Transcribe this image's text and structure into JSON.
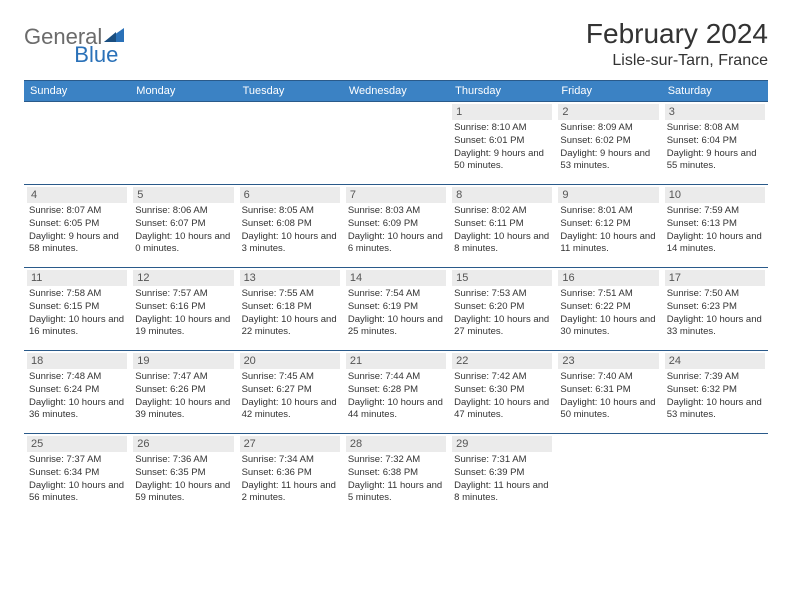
{
  "logo": {
    "text1": "General",
    "text2": "Blue",
    "icon_color": "#2a71b8"
  },
  "title": "February 2024",
  "location": "Lisle-sur-Tarn, France",
  "colors": {
    "header_bg": "#3b82c4",
    "header_border": "#2a5a8a",
    "daynum_bg": "#ebebeb",
    "text": "#333333"
  },
  "weekdays": [
    "Sunday",
    "Monday",
    "Tuesday",
    "Wednesday",
    "Thursday",
    "Friday",
    "Saturday"
  ],
  "weeks": [
    [
      null,
      null,
      null,
      null,
      {
        "n": "1",
        "sr": "8:10 AM",
        "ss": "6:01 PM",
        "dl": "9 hours and 50 minutes."
      },
      {
        "n": "2",
        "sr": "8:09 AM",
        "ss": "6:02 PM",
        "dl": "9 hours and 53 minutes."
      },
      {
        "n": "3",
        "sr": "8:08 AM",
        "ss": "6:04 PM",
        "dl": "9 hours and 55 minutes."
      }
    ],
    [
      {
        "n": "4",
        "sr": "8:07 AM",
        "ss": "6:05 PM",
        "dl": "9 hours and 58 minutes."
      },
      {
        "n": "5",
        "sr": "8:06 AM",
        "ss": "6:07 PM",
        "dl": "10 hours and 0 minutes."
      },
      {
        "n": "6",
        "sr": "8:05 AM",
        "ss": "6:08 PM",
        "dl": "10 hours and 3 minutes."
      },
      {
        "n": "7",
        "sr": "8:03 AM",
        "ss": "6:09 PM",
        "dl": "10 hours and 6 minutes."
      },
      {
        "n": "8",
        "sr": "8:02 AM",
        "ss": "6:11 PM",
        "dl": "10 hours and 8 minutes."
      },
      {
        "n": "9",
        "sr": "8:01 AM",
        "ss": "6:12 PM",
        "dl": "10 hours and 11 minutes."
      },
      {
        "n": "10",
        "sr": "7:59 AM",
        "ss": "6:13 PM",
        "dl": "10 hours and 14 minutes."
      }
    ],
    [
      {
        "n": "11",
        "sr": "7:58 AM",
        "ss": "6:15 PM",
        "dl": "10 hours and 16 minutes."
      },
      {
        "n": "12",
        "sr": "7:57 AM",
        "ss": "6:16 PM",
        "dl": "10 hours and 19 minutes."
      },
      {
        "n": "13",
        "sr": "7:55 AM",
        "ss": "6:18 PM",
        "dl": "10 hours and 22 minutes."
      },
      {
        "n": "14",
        "sr": "7:54 AM",
        "ss": "6:19 PM",
        "dl": "10 hours and 25 minutes."
      },
      {
        "n": "15",
        "sr": "7:53 AM",
        "ss": "6:20 PM",
        "dl": "10 hours and 27 minutes."
      },
      {
        "n": "16",
        "sr": "7:51 AM",
        "ss": "6:22 PM",
        "dl": "10 hours and 30 minutes."
      },
      {
        "n": "17",
        "sr": "7:50 AM",
        "ss": "6:23 PM",
        "dl": "10 hours and 33 minutes."
      }
    ],
    [
      {
        "n": "18",
        "sr": "7:48 AM",
        "ss": "6:24 PM",
        "dl": "10 hours and 36 minutes."
      },
      {
        "n": "19",
        "sr": "7:47 AM",
        "ss": "6:26 PM",
        "dl": "10 hours and 39 minutes."
      },
      {
        "n": "20",
        "sr": "7:45 AM",
        "ss": "6:27 PM",
        "dl": "10 hours and 42 minutes."
      },
      {
        "n": "21",
        "sr": "7:44 AM",
        "ss": "6:28 PM",
        "dl": "10 hours and 44 minutes."
      },
      {
        "n": "22",
        "sr": "7:42 AM",
        "ss": "6:30 PM",
        "dl": "10 hours and 47 minutes."
      },
      {
        "n": "23",
        "sr": "7:40 AM",
        "ss": "6:31 PM",
        "dl": "10 hours and 50 minutes."
      },
      {
        "n": "24",
        "sr": "7:39 AM",
        "ss": "6:32 PM",
        "dl": "10 hours and 53 minutes."
      }
    ],
    [
      {
        "n": "25",
        "sr": "7:37 AM",
        "ss": "6:34 PM",
        "dl": "10 hours and 56 minutes."
      },
      {
        "n": "26",
        "sr": "7:36 AM",
        "ss": "6:35 PM",
        "dl": "10 hours and 59 minutes."
      },
      {
        "n": "27",
        "sr": "7:34 AM",
        "ss": "6:36 PM",
        "dl": "11 hours and 2 minutes."
      },
      {
        "n": "28",
        "sr": "7:32 AM",
        "ss": "6:38 PM",
        "dl": "11 hours and 5 minutes."
      },
      {
        "n": "29",
        "sr": "7:31 AM",
        "ss": "6:39 PM",
        "dl": "11 hours and 8 minutes."
      },
      null,
      null
    ]
  ]
}
